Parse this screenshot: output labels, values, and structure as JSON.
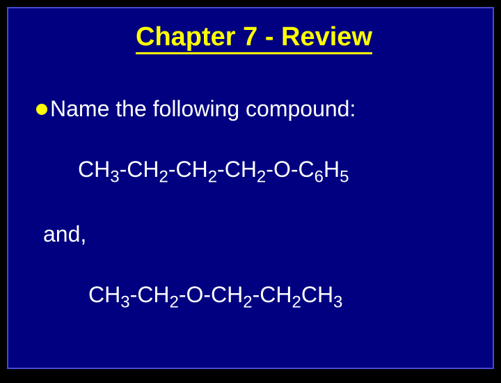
{
  "slide": {
    "title": "Chapter 7 - Review",
    "title_color": "#ffff00",
    "title_fontsize": 38,
    "title_fontweight": "bold",
    "bullet_color": "#ffff00",
    "bullet_size": 16,
    "prompt": "Name the following compound:",
    "prompt_fontsize": 32,
    "formula1_parts": {
      "p1": "CH",
      "s1": "3",
      "p2": "-CH",
      "s2": "2",
      "p3": "-CH",
      "s3": "2",
      "p4": "-CH",
      "s4": "2",
      "p5": "-O-C",
      "s5": "6",
      "p6": "H",
      "s6": "5"
    },
    "formula1_fontsize": 32,
    "and_text": "and,",
    "and_fontsize": 32,
    "formula2_parts": {
      "p1": "CH",
      "s1": "3",
      "p2": "-CH",
      "s2": "2",
      "p3": "-O-CH",
      "s3": "2",
      "p4": "-CH",
      "s4": "2",
      "p5": "CH",
      "s5": "3"
    },
    "formula2_fontsize": 32,
    "background_color": "#000080",
    "border_color": "#4a4ad0",
    "text_color": "#ffffff",
    "outer_background": "#000000"
  }
}
